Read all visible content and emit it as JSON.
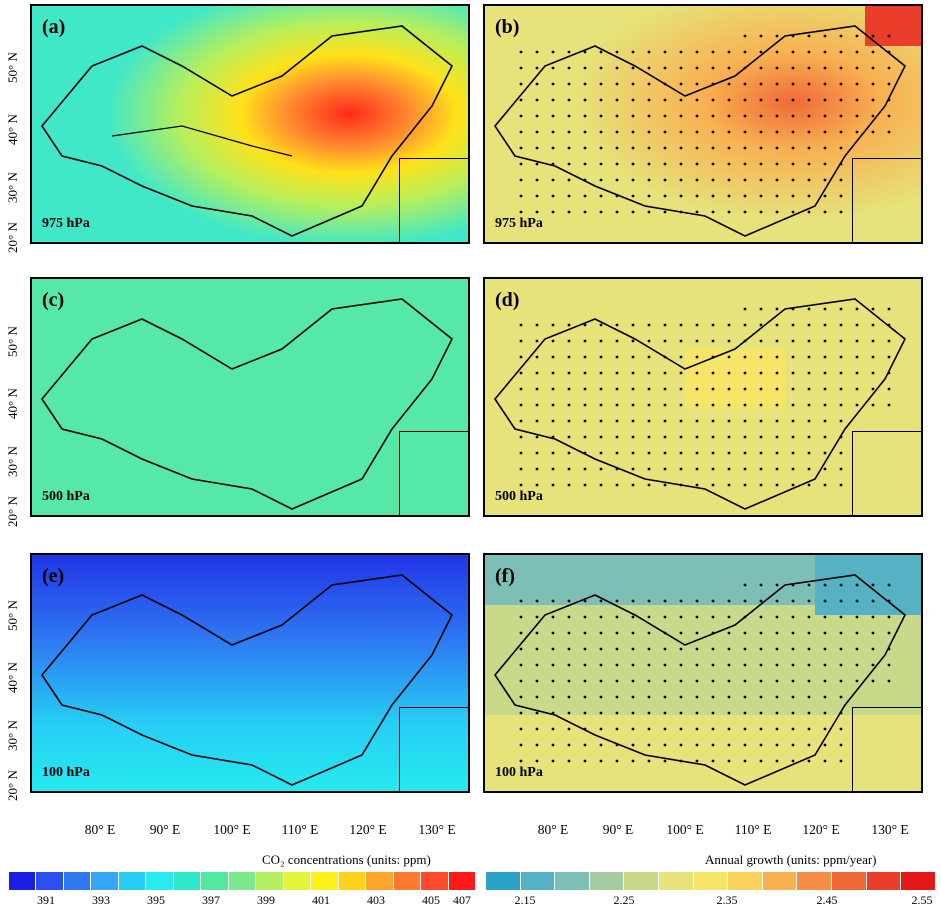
{
  "panels": [
    {
      "id": "a",
      "label": "(a)",
      "level": "975 hPa"
    },
    {
      "id": "b",
      "label": "(b)",
      "level": "975 hPa"
    },
    {
      "id": "c",
      "label": "(c)",
      "level": "500 hPa"
    },
    {
      "id": "d",
      "label": "(d)",
      "level": "500 hPa"
    },
    {
      "id": "e",
      "label": "(e)",
      "level": "100 hPa"
    },
    {
      "id": "f",
      "label": "(f)",
      "level": "100 hPa"
    }
  ],
  "lat_labels": [
    "20° N",
    "30° N",
    "40° N",
    "50° N"
  ],
  "lon_labels": [
    "80° E",
    "90° E",
    "100° E",
    "110° E",
    "120° E",
    "130° E"
  ],
  "colorbar_left": {
    "title": "CO₂ concentrations (units: ppm)",
    "ticks": [
      "391",
      "393",
      "395",
      "397",
      "399",
      "401",
      "403",
      "405",
      "407"
    ],
    "colors": [
      "#1a1fe6",
      "#2b4ff0",
      "#2e78f2",
      "#35a6f5",
      "#27cdf5",
      "#26ecef",
      "#2fe8c9",
      "#52e8a1",
      "#7ae88b",
      "#b2ef62",
      "#e3f53b",
      "#fff21a",
      "#ffd21e",
      "#ffa42a",
      "#ff7a30",
      "#ff4b2b",
      "#ff1a1a"
    ]
  },
  "colorbar_right": {
    "title": "Annual growth (units: ppm/year)",
    "ticks": [
      "2.15",
      "2.25",
      "2.35",
      "2.45",
      "2.55"
    ],
    "colors": [
      "#2aa3c9",
      "#54b2c4",
      "#7dbfb6",
      "#a5cba2",
      "#c9d98a",
      "#e5e37a",
      "#f7e56a",
      "#fbd15e",
      "#f9b050",
      "#f68d45",
      "#f06a38",
      "#ea3d2a",
      "#e51717"
    ]
  }
}
